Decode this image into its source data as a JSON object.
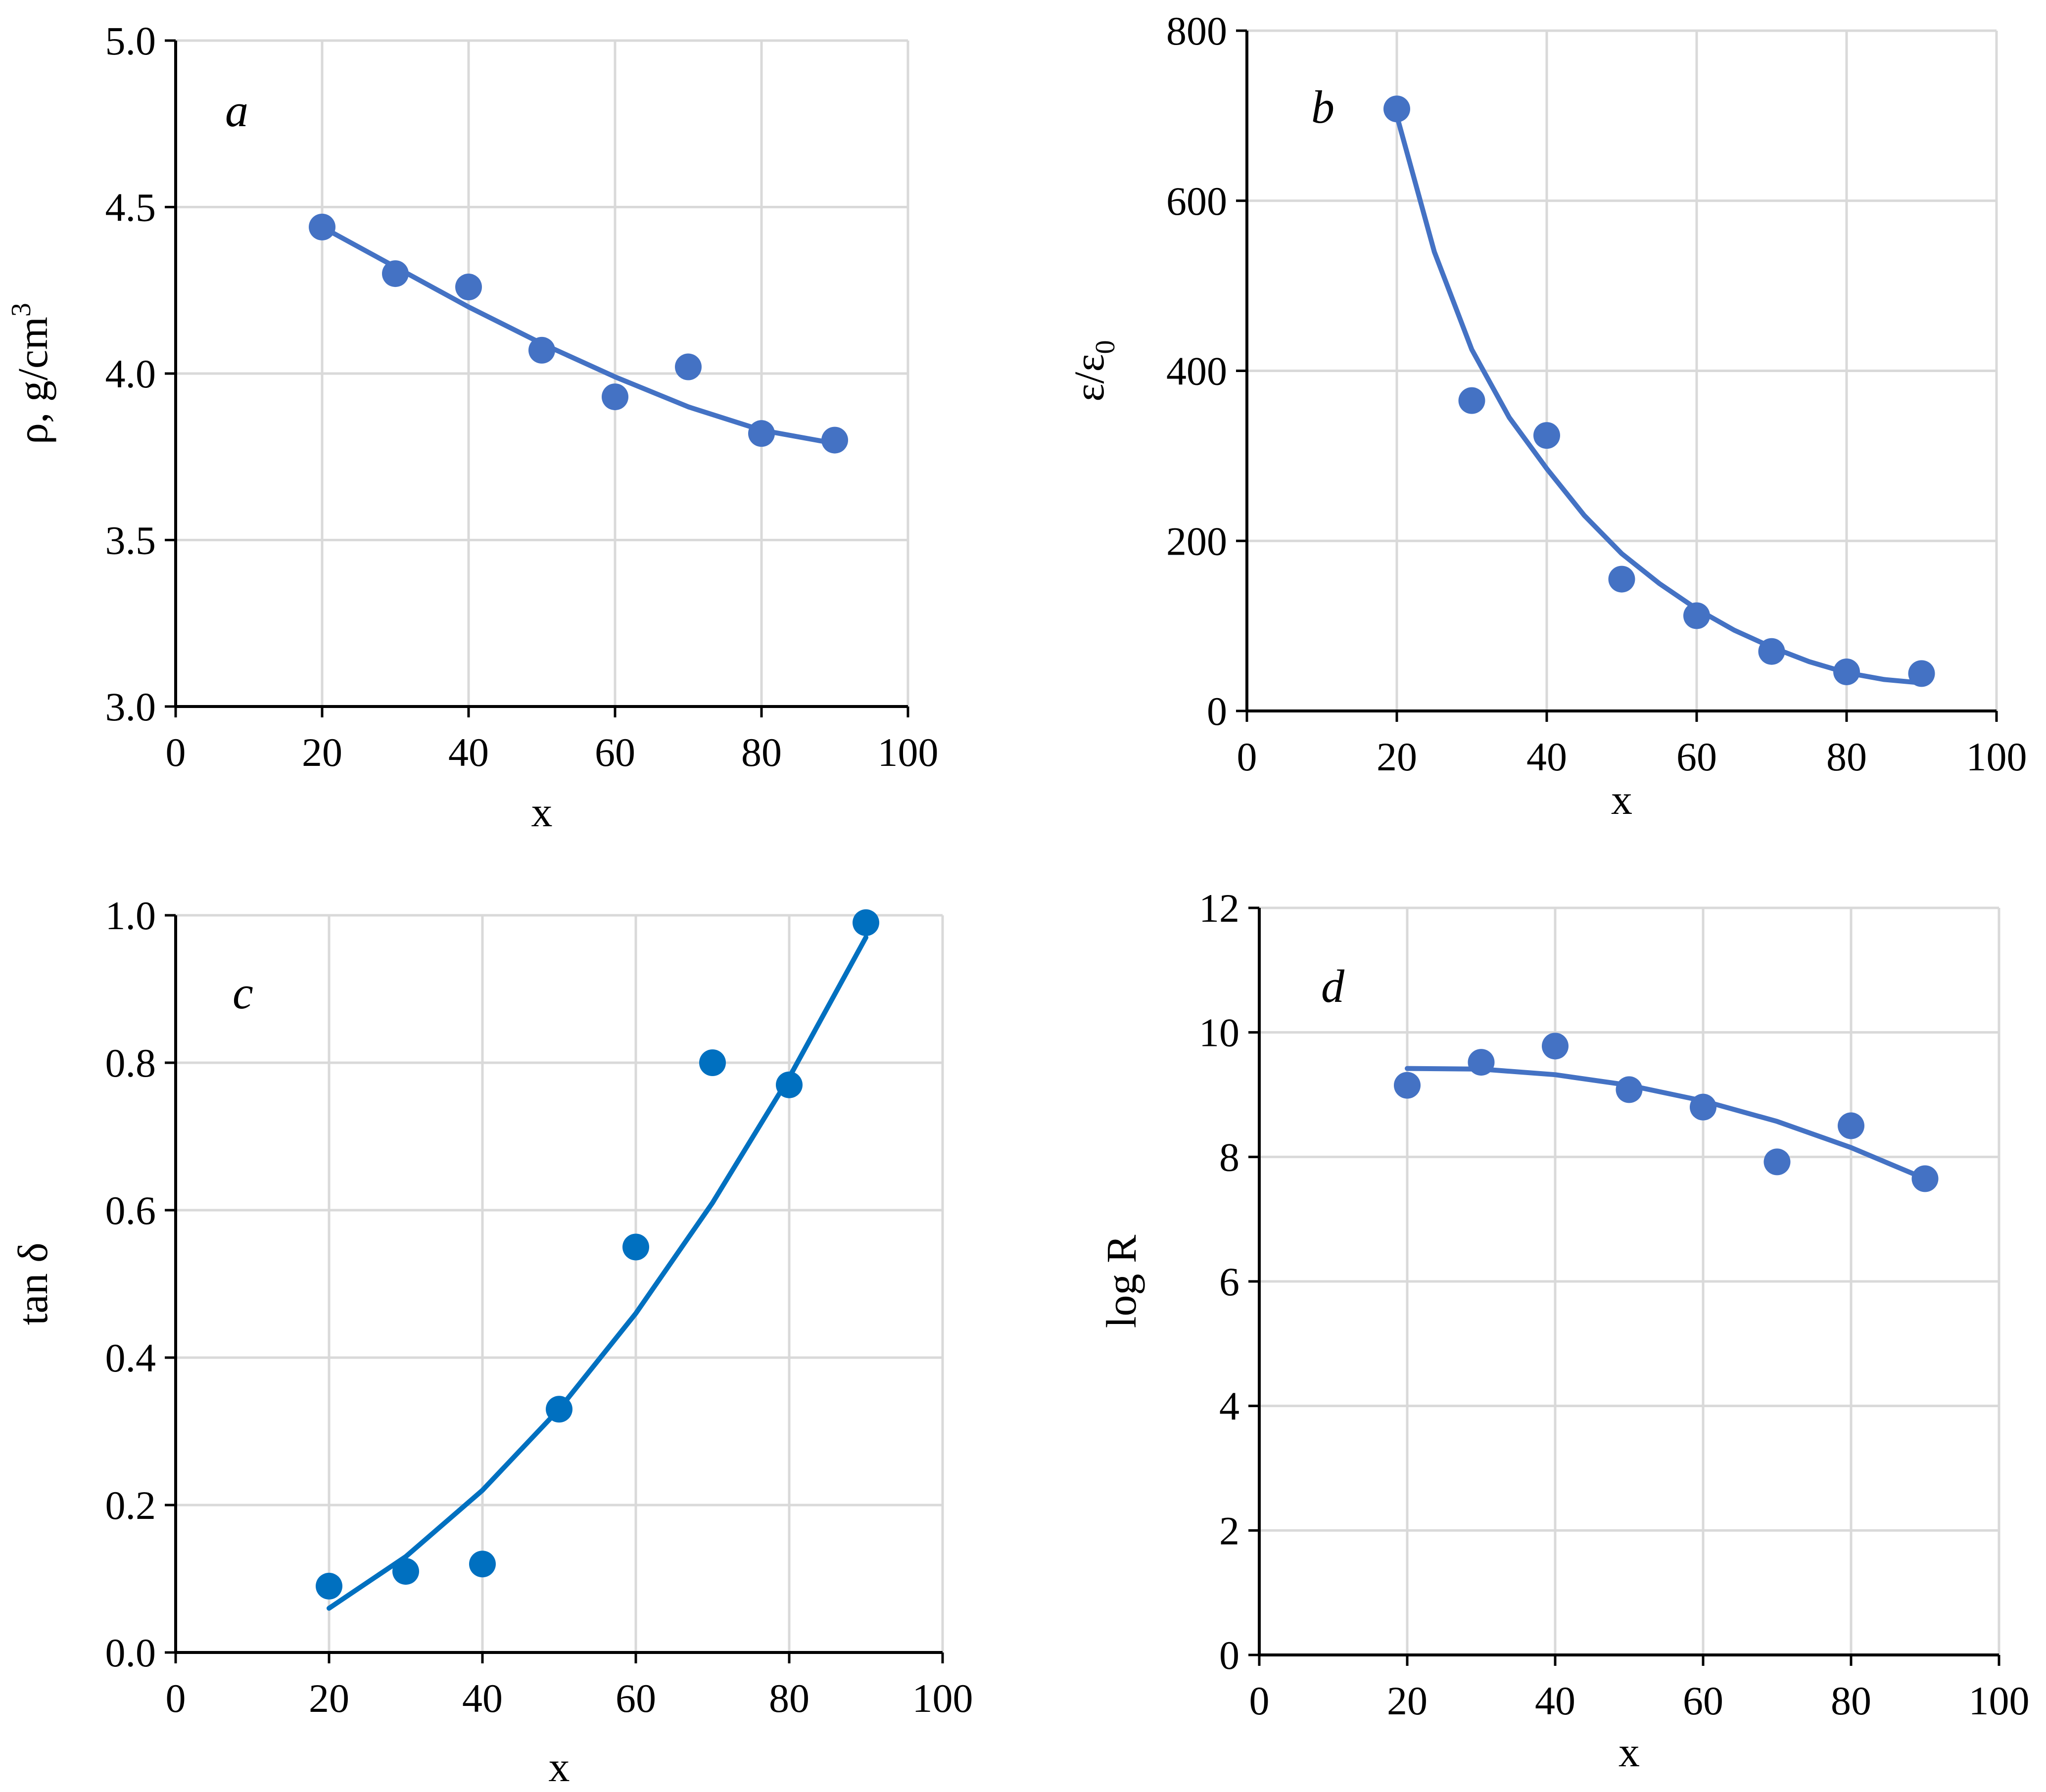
{
  "colors": {
    "series_a_b_d": "#4472c4",
    "series_c": "#0070c0"
  },
  "chart_data": [
    {
      "type": "scatter",
      "panel_label": "a",
      "xlabel": "x",
      "ylabel_parts": [
        "ρ, g/cm",
        "3"
      ],
      "xlim": [
        0,
        100
      ],
      "ylim": [
        3.0,
        5.0
      ],
      "xticks": [
        0,
        20,
        40,
        60,
        80,
        100
      ],
      "yticks": [
        3.0,
        3.5,
        4.0,
        4.5,
        5.0
      ],
      "ytick_decimals": 1,
      "grid": true,
      "series": [
        {
          "x": [
            20,
            30,
            40,
            50,
            60,
            70,
            80,
            90
          ],
          "y": [
            4.44,
            4.3,
            4.26,
            4.07,
            3.93,
            4.02,
            3.82,
            3.8
          ]
        }
      ],
      "trendline": {
        "x": [
          20,
          30,
          40,
          50,
          60,
          70,
          80,
          90
        ],
        "y": [
          4.44,
          4.32,
          4.2,
          4.09,
          3.99,
          3.9,
          3.83,
          3.79
        ]
      }
    },
    {
      "type": "scatter",
      "panel_label": "b",
      "xlabel": "x",
      "ylabel_parts": [
        "ε/ε",
        "0"
      ],
      "xlim": [
        0,
        100
      ],
      "ylim": [
        0,
        800
      ],
      "xticks": [
        0,
        20,
        40,
        60,
        80,
        100
      ],
      "yticks": [
        0,
        200,
        400,
        600,
        800
      ],
      "ytick_decimals": 0,
      "grid": true,
      "series": [
        {
          "x": [
            20,
            30,
            40,
            50,
            60,
            70,
            80,
            90
          ],
          "y": [
            708,
            365,
            324,
            155,
            112,
            70,
            46,
            44
          ]
        }
      ],
      "trendline": {
        "x": [
          20,
          25,
          30,
          35,
          40,
          45,
          50,
          55,
          60,
          65,
          70,
          75,
          80,
          85,
          90
        ],
        "y": [
          700,
          540,
          425,
          345,
          285,
          230,
          185,
          150,
          120,
          95,
          75,
          58,
          45,
          37,
          33
        ]
      }
    },
    {
      "type": "scatter",
      "panel_label": "c",
      "xlabel": "x",
      "ylabel_parts": [
        "tan δ"
      ],
      "xlim": [
        0,
        100
      ],
      "ylim": [
        0.0,
        1.0
      ],
      "xticks": [
        0,
        20,
        40,
        60,
        80,
        100
      ],
      "yticks": [
        0.0,
        0.2,
        0.4,
        0.6,
        0.8,
        1.0
      ],
      "ytick_decimals": 1,
      "grid": true,
      "series": [
        {
          "x": [
            20,
            30,
            40,
            50,
            60,
            70,
            80,
            90
          ],
          "y": [
            0.09,
            0.11,
            0.12,
            0.33,
            0.55,
            0.8,
            0.77,
            0.99
          ]
        }
      ],
      "trendline": {
        "x": [
          20,
          30,
          40,
          50,
          60,
          70,
          80,
          90
        ],
        "y": [
          0.06,
          0.13,
          0.22,
          0.33,
          0.46,
          0.61,
          0.78,
          0.97
        ]
      }
    },
    {
      "type": "scatter",
      "panel_label": "d",
      "xlabel": "x",
      "ylabel_parts": [
        "log R"
      ],
      "xlim": [
        0,
        100
      ],
      "ylim": [
        0,
        12
      ],
      "xticks": [
        0,
        20,
        40,
        60,
        80,
        100
      ],
      "yticks": [
        0,
        2,
        4,
        6,
        8,
        10,
        12
      ],
      "ytick_decimals": 0,
      "grid": true,
      "series": [
        {
          "x": [
            20,
            30,
            40,
            50,
            60,
            70,
            80,
            90
          ],
          "y": [
            9.15,
            9.52,
            9.78,
            9.08,
            8.8,
            7.92,
            8.5,
            7.65
          ]
        }
      ],
      "trendline": {
        "x": [
          20,
          30,
          40,
          50,
          60,
          70,
          80,
          90
        ],
        "y": [
          9.42,
          9.41,
          9.32,
          9.15,
          8.9,
          8.57,
          8.15,
          7.65
        ]
      }
    }
  ]
}
